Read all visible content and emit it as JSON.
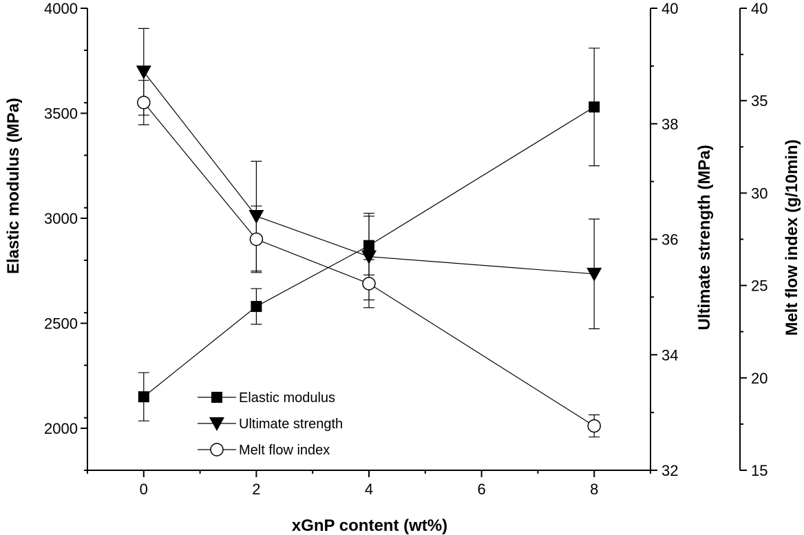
{
  "chart_data": {
    "type": "line",
    "title": "",
    "xlabel": "xGnP content (wt%)",
    "x_categories": [
      "0",
      "2",
      "4",
      "6",
      "8"
    ],
    "x_data": [
      0,
      2,
      4,
      8
    ],
    "xlim": [
      -1,
      9
    ],
    "axes": {
      "left": {
        "label": "Elastic modulus (MPa)",
        "range": [
          1800,
          4000
        ],
        "ticks": [
          "2000",
          "2500",
          "3000",
          "3500",
          "4000"
        ]
      },
      "right1": {
        "label": "Ultimate strength (MPa)",
        "range": [
          32,
          40
        ],
        "ticks": [
          "32",
          "34",
          "36",
          "38",
          "40"
        ]
      },
      "right2": {
        "label": "Melt flow index (g/10min)",
        "range": [
          15,
          40
        ],
        "ticks": [
          "15",
          "20",
          "25",
          "30",
          "35",
          "40"
        ]
      }
    },
    "series": [
      {
        "name": "Elastic modulus",
        "axis": "left",
        "marker": "filled-square",
        "values": [
          2150,
          2580,
          2870,
          3530
        ],
        "errors": [
          115,
          85,
          140,
          280
        ]
      },
      {
        "name": "Ultimate strength",
        "axis": "right1",
        "marker": "filled-triangle",
        "values": [
          38.9,
          36.4,
          35.7,
          35.4
        ],
        "errors": [
          0.75,
          0.95,
          0.75,
          0.95
        ]
      },
      {
        "name": "Melt flow index",
        "axis": "right2",
        "marker": "open-circle",
        "values": [
          34.9,
          27.5,
          25.1,
          17.4
        ],
        "errors": [
          1.2,
          1.8,
          1.3,
          0.6
        ]
      }
    ],
    "legend_position": "lower-left inside plot",
    "grid": false
  }
}
